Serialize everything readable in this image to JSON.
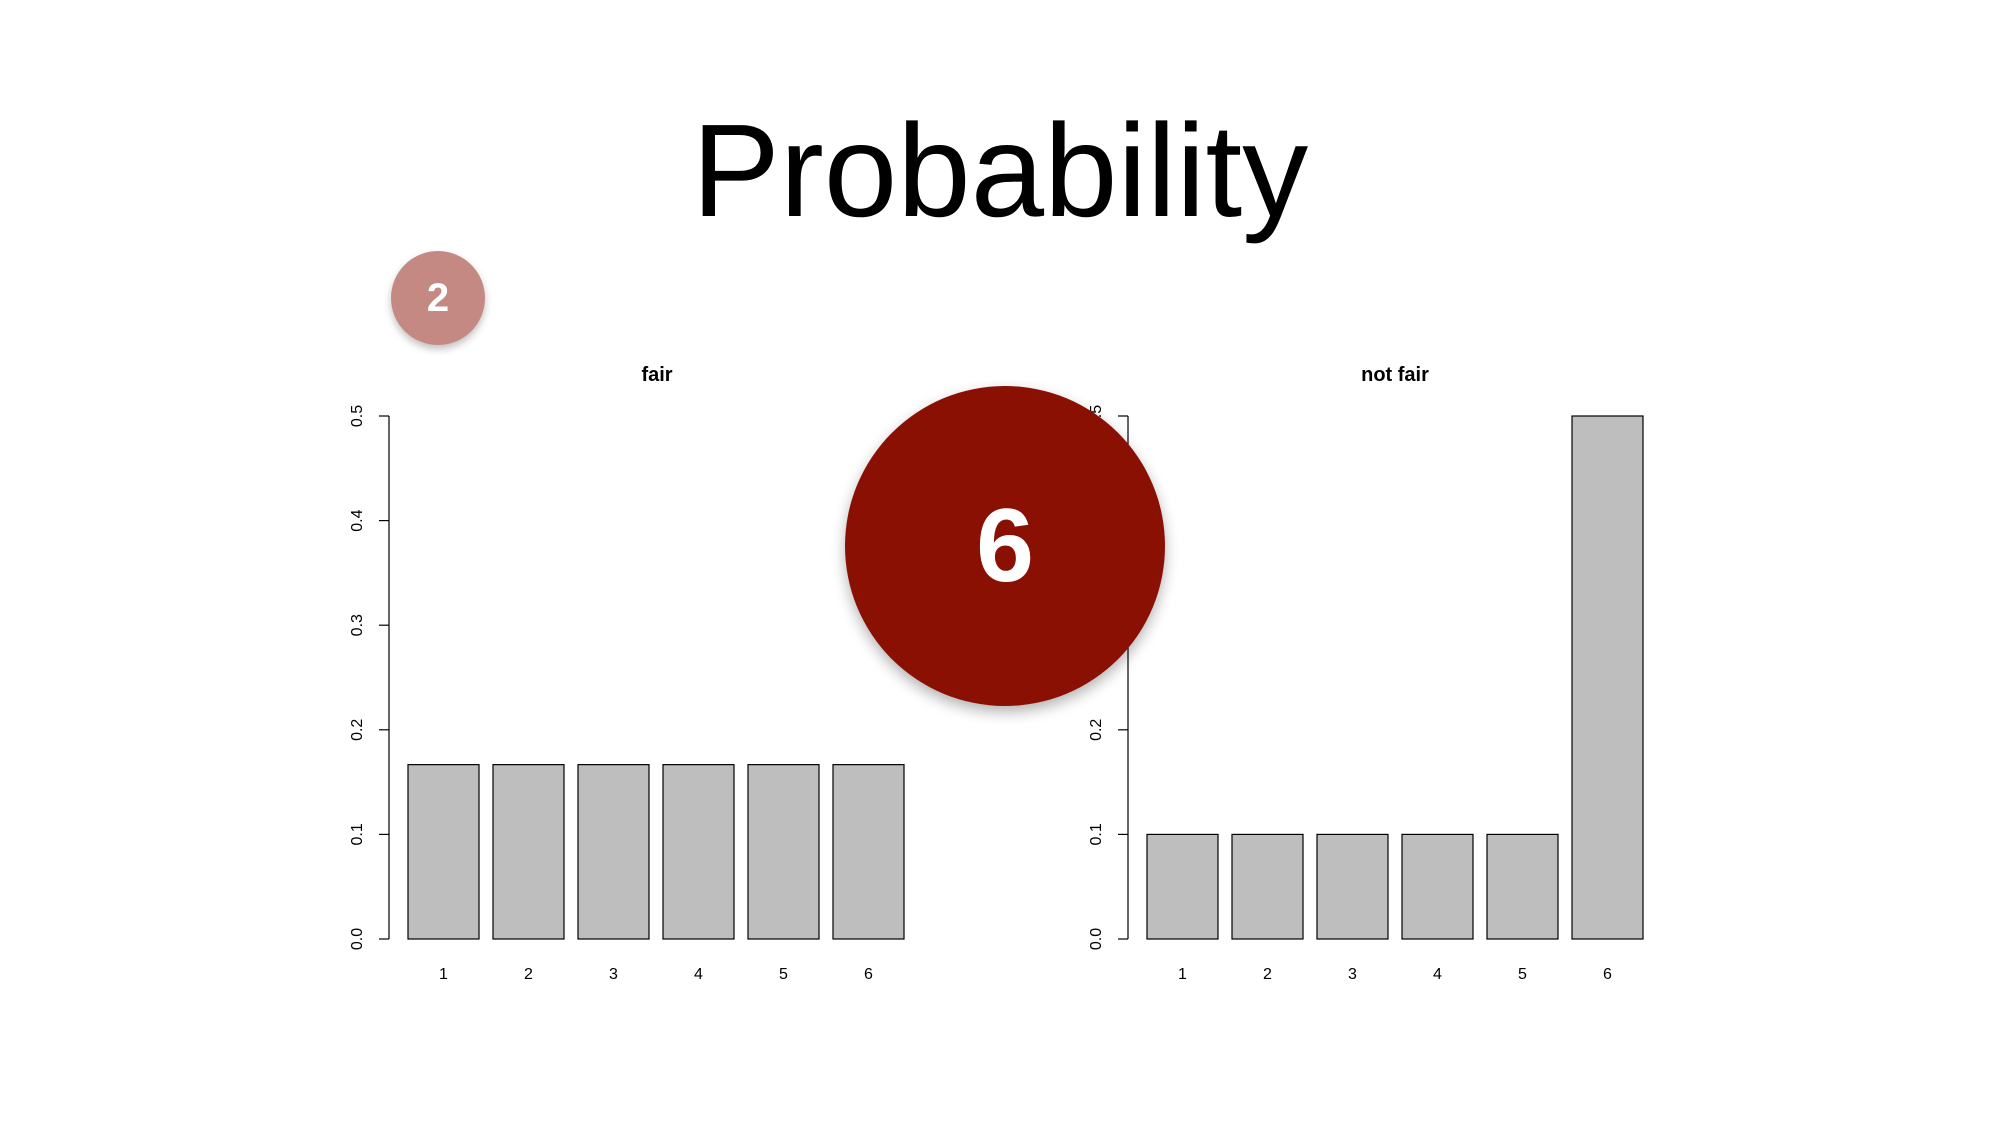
{
  "slide": {
    "title": "Probability"
  },
  "badges": {
    "small": {
      "label": "2",
      "color": "#c48983"
    },
    "large": {
      "label": "6",
      "color": "#8a1004"
    }
  },
  "colors": {
    "bar_fill": "#bebebe",
    "bar_stroke": "#000000",
    "axis": "#000000"
  },
  "chart_data": [
    {
      "type": "bar",
      "title": "fair",
      "categories": [
        "1",
        "2",
        "3",
        "4",
        "5",
        "6"
      ],
      "values": [
        0.1667,
        0.1667,
        0.1667,
        0.1667,
        0.1667,
        0.1667
      ],
      "ylim": [
        0,
        0.5
      ],
      "yticks": [
        "0.0",
        "0.1",
        "0.2",
        "0.3",
        "0.4",
        "0.5"
      ],
      "xlabel": "",
      "ylabel": "",
      "grid": false
    },
    {
      "type": "bar",
      "title": "not fair",
      "categories": [
        "1",
        "2",
        "3",
        "4",
        "5",
        "6"
      ],
      "values": [
        0.1,
        0.1,
        0.1,
        0.1,
        0.1,
        0.5
      ],
      "ylim": [
        0,
        0.5
      ],
      "yticks": [
        "0.0",
        "0.1",
        "0.2",
        "0.3",
        "0.4",
        "0.5"
      ],
      "xlabel": "",
      "ylabel": "",
      "grid": false
    }
  ]
}
